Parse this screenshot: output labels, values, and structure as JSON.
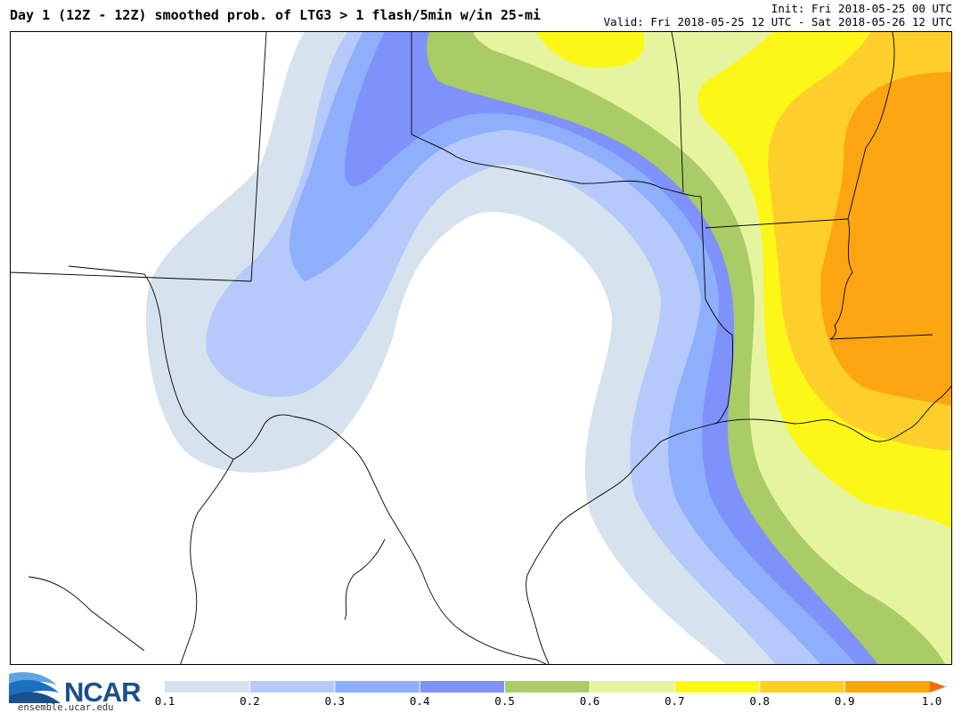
{
  "header": {
    "title": "Day 1 (12Z - 12Z) smoothed prob. of LTG3 > 1 flash/5min w/in 25-mi",
    "init": "Init: Fri 2018-05-25 00 UTC",
    "valid": "Valid: Fri 2018-05-25 12 UTC - Sat 2018-05-26 12 UTC"
  },
  "logo": {
    "name": "NCAR",
    "url": "ensemble.ucar.edu"
  },
  "colorbar": {
    "ticks": [
      "0.1",
      "0.2",
      "0.3",
      "0.4",
      "0.5",
      "0.6",
      "0.7",
      "0.8",
      "0.9",
      "1.0"
    ],
    "colors": [
      "#d6e2ee",
      "#b5c9fb",
      "#8eaffb",
      "#7f91fa",
      "#a9cc66",
      "#e6f4a0",
      "#fcf717",
      "#fecf2b",
      "#fba611"
    ]
  }
}
